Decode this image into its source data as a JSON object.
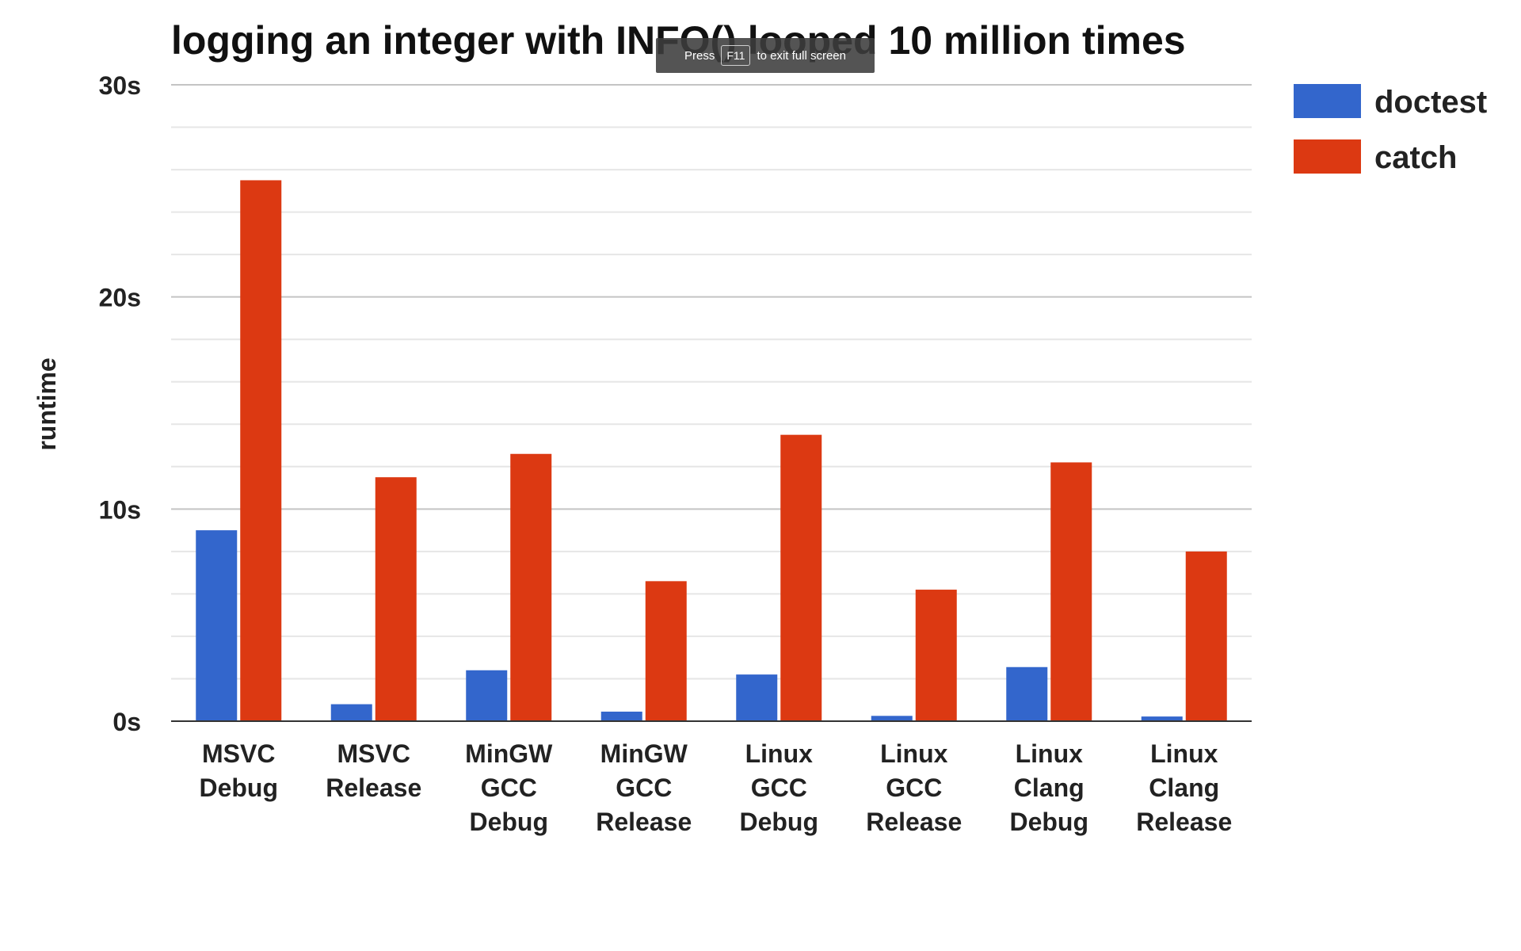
{
  "toast": {
    "press": "Press",
    "key": "F11",
    "message": "to exit full screen"
  },
  "chart_data": {
    "type": "bar",
    "title": "logging an integer with INFO() looped 10 million times",
    "xlabel": "",
    "ylabel": "runtime",
    "ylim": [
      0,
      30
    ],
    "yticks": [
      "0s",
      "10s",
      "20s",
      "30s"
    ],
    "ytick_values": [
      0,
      10,
      20,
      30
    ],
    "grid": true,
    "legend_position": "right",
    "categories": [
      [
        "MSVC",
        "Debug"
      ],
      [
        "MSVC",
        "Release"
      ],
      [
        "MinGW",
        "GCC",
        "Debug"
      ],
      [
        "MinGW",
        "GCC",
        "Release"
      ],
      [
        "Linux",
        "GCC",
        "Debug"
      ],
      [
        "Linux",
        "GCC",
        "Release"
      ],
      [
        "Linux",
        "Clang",
        "Debug"
      ],
      [
        "Linux",
        "Clang",
        "Release"
      ]
    ],
    "series": [
      {
        "name": "doctest",
        "color": "#3366cc",
        "values": [
          9.0,
          0.8,
          2.4,
          0.45,
          2.2,
          0.25,
          2.55,
          0.22
        ]
      },
      {
        "name": "catch",
        "color": "#dc3912",
        "values": [
          25.5,
          11.5,
          12.6,
          6.6,
          13.5,
          6.2,
          12.2,
          8.0
        ]
      }
    ]
  }
}
